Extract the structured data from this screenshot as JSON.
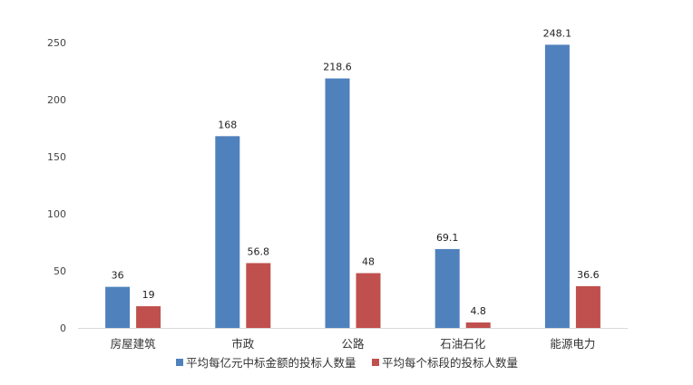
{
  "chart_data": {
    "type": "bar",
    "title": "",
    "xlabel": "",
    "ylabel": "",
    "categories": [
      "房屋建筑",
      "市政",
      "公路",
      "石油石化",
      "能源电力"
    ],
    "series": [
      {
        "name": "平均每亿元中标金额的投标人数量",
        "values": [
          36,
          168,
          218.6,
          69.1,
          248.1
        ],
        "value_labels": [
          "36",
          "168",
          "218.6",
          "69.1",
          "248.1"
        ],
        "color": "#4f81bd"
      },
      {
        "name": "平均每个标段的投标人数量",
        "values": [
          19,
          56.8,
          48,
          4.8,
          36.6
        ],
        "value_labels": [
          "19",
          "56.8",
          "48",
          "4.8",
          "36.6"
        ],
        "color": "#c0504d"
      }
    ],
    "ylim": [
      0,
      250
    ],
    "yticks": [
      0,
      50,
      100,
      150,
      200,
      250
    ],
    "grid": false,
    "legend": "bottom",
    "axis_color": "#d9d9d9"
  }
}
